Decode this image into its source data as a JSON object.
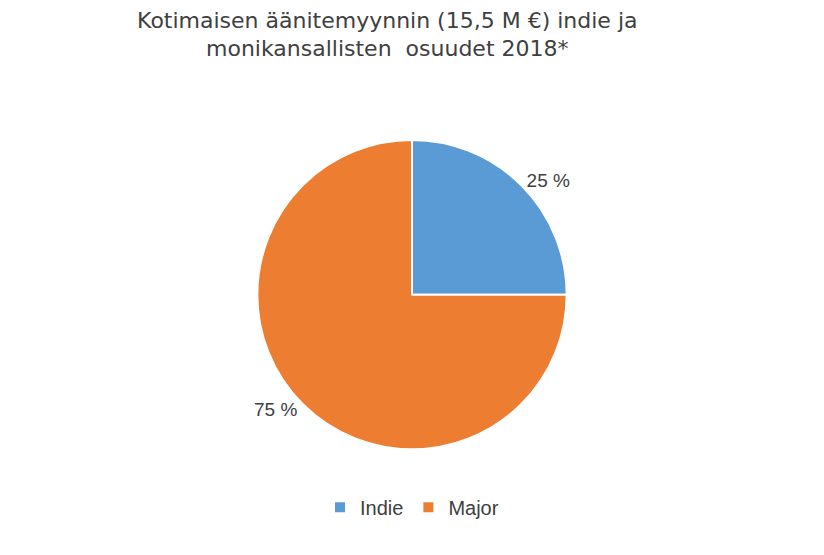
{
  "chart_data": {
    "type": "pie",
    "title": "Kotimaisen äänitemyynnin (15,5 M €) indie ja\nmonikansallisten  osuudet 2018*",
    "categories": [
      "Indie",
      "Major"
    ],
    "values": [
      25,
      75
    ],
    "value_labels": [
      "25 %",
      "75 %"
    ],
    "colors": [
      "#5b9bd5",
      "#ed7d31"
    ],
    "data_labels": true,
    "legend": "bottom"
  }
}
